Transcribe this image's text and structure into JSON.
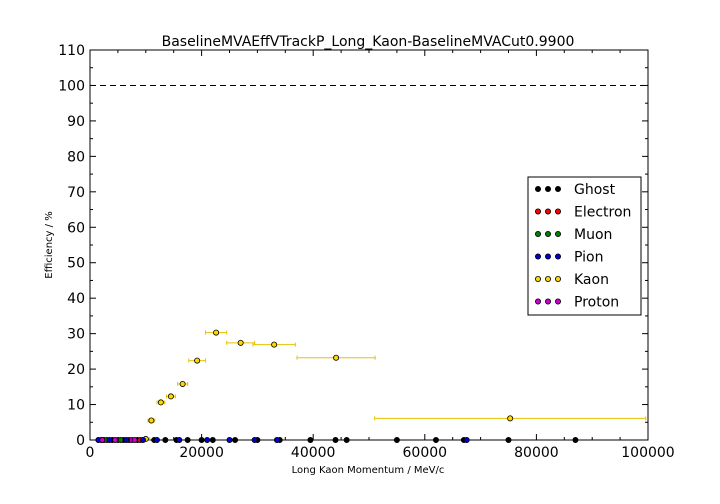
{
  "chart_data": {
    "type": "scatter",
    "title": "BaselineMVAEffVTrackP_Long_Kaon-BaselineMVACut0.9900",
    "xlabel": "Long Kaon Momentum / MeV/c",
    "ylabel": "Efficiency / %",
    "xlim": [
      0,
      100000
    ],
    "ylim": [
      0,
      110
    ],
    "xticks": [
      "0",
      "20000",
      "40000",
      "60000",
      "80000",
      "100000"
    ],
    "yticks": [
      "0",
      "10",
      "20",
      "30",
      "40",
      "50",
      "60",
      "70",
      "80",
      "90",
      "100",
      "110"
    ],
    "reference_line": {
      "y": 100,
      "style": "dashed",
      "color": "#000000"
    },
    "legend": {
      "position": "right",
      "entries": [
        "Ghost",
        "Electron",
        "Muon",
        "Pion",
        "Kaon",
        "Proton"
      ]
    },
    "series": [
      {
        "name": "Kaon",
        "color": "#ffd700",
        "error_color": "#e6c200",
        "points": [
          {
            "x": 10000,
            "y": 0.3,
            "xerr": 700
          },
          {
            "x": 11000,
            "y": 5.5,
            "xerr": 600
          },
          {
            "x": 12700,
            "y": 10.6,
            "xerr": 700
          },
          {
            "x": 14500,
            "y": 12.3,
            "xerr": 800
          },
          {
            "x": 16600,
            "y": 15.8,
            "xerr": 900
          },
          {
            "x": 19200,
            "y": 22.4,
            "xerr": 1500
          },
          {
            "x": 22600,
            "y": 30.3,
            "xerr": 1900
          },
          {
            "x": 27000,
            "y": 27.4,
            "xerr": 2500
          },
          {
            "x": 33000,
            "y": 26.9,
            "xerr": 3800
          },
          {
            "x": 44100,
            "y": 23.2,
            "xerr": 7000
          },
          {
            "x": 75300,
            "y": 6.1,
            "xerr": 24300
          }
        ]
      },
      {
        "name": "Ghost",
        "color": "#000000",
        "points": [
          {
            "x": 2000,
            "y": 0
          },
          {
            "x": 4000,
            "y": 0
          },
          {
            "x": 6000,
            "y": 0
          },
          {
            "x": 8500,
            "y": 0
          },
          {
            "x": 11500,
            "y": 0
          },
          {
            "x": 13500,
            "y": 0
          },
          {
            "x": 15500,
            "y": 0
          },
          {
            "x": 17500,
            "y": 0
          },
          {
            "x": 20000,
            "y": 0
          },
          {
            "x": 22000,
            "y": 0
          },
          {
            "x": 26000,
            "y": 0
          },
          {
            "x": 30000,
            "y": 0
          },
          {
            "x": 34000,
            "y": 0
          },
          {
            "x": 39500,
            "y": 0
          },
          {
            "x": 44000,
            "y": 0
          },
          {
            "x": 46000,
            "y": 0
          },
          {
            "x": 55000,
            "y": 0
          },
          {
            "x": 62000,
            "y": 0
          },
          {
            "x": 67000,
            "y": 0
          },
          {
            "x": 75000,
            "y": 0
          },
          {
            "x": 87000,
            "y": 0
          }
        ]
      },
      {
        "name": "Electron",
        "color": "#ff0000",
        "points": [
          {
            "x": 2500,
            "y": 0
          },
          {
            "x": 5000,
            "y": 0
          },
          {
            "x": 7000,
            "y": 0
          },
          {
            "x": 9000,
            "y": 0
          }
        ]
      },
      {
        "name": "Muon",
        "color": "#008000",
        "points": [
          {
            "x": 3000,
            "y": 0
          },
          {
            "x": 5500,
            "y": 0
          }
        ]
      },
      {
        "name": "Pion",
        "color": "#0000cc",
        "points": [
          {
            "x": 1500,
            "y": 0
          },
          {
            "x": 3500,
            "y": 0
          },
          {
            "x": 6500,
            "y": 0
          },
          {
            "x": 9500,
            "y": 0
          },
          {
            "x": 12000,
            "y": 0
          },
          {
            "x": 16000,
            "y": 0
          },
          {
            "x": 21000,
            "y": 0
          },
          {
            "x": 25000,
            "y": 0
          },
          {
            "x": 29500,
            "y": 0
          },
          {
            "x": 33500,
            "y": 0
          },
          {
            "x": 67500,
            "y": 0
          }
        ]
      },
      {
        "name": "Proton",
        "color": "#cc00cc",
        "points": [
          {
            "x": 2200,
            "y": 0
          },
          {
            "x": 4500,
            "y": 0
          },
          {
            "x": 7500,
            "y": 0
          },
          {
            "x": 8000,
            "y": 0
          }
        ]
      }
    ]
  }
}
